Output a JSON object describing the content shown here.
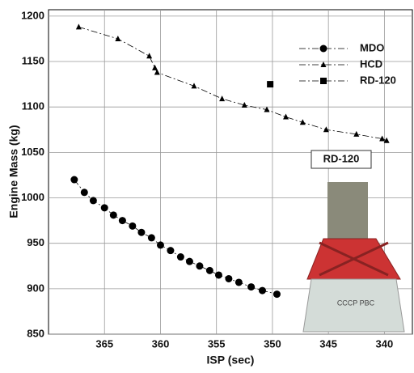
{
  "chart_data": {
    "type": "scatter",
    "x_label": "ISP (sec)",
    "y_label": "Engine Mass (kg)",
    "xlim": [
      370,
      337.5
    ],
    "ylim": [
      850,
      1207
    ],
    "xticks": [
      365,
      360,
      355,
      350,
      345,
      340
    ],
    "yticks": [
      850,
      900,
      950,
      1000,
      1050,
      1100,
      1150,
      1200
    ],
    "grid": true,
    "legend": "upper right",
    "annotation": "RD-120",
    "series": [
      {
        "name": "MDO",
        "color": "#000000",
        "marker": "circle",
        "line": true,
        "x": [
          367.7,
          366.8,
          366,
          365,
          364.2,
          363.4,
          362.5,
          361.7,
          360.8,
          360,
          359.1,
          358.2,
          357.4,
          356.5,
          355.6,
          354.8,
          353.9,
          353,
          351.9,
          350.9,
          349.6
        ],
        "values": [
          1020,
          1006,
          997,
          989,
          981,
          975,
          969,
          962,
          956,
          948,
          942,
          935,
          930,
          925,
          920,
          915,
          911,
          907,
          902,
          898,
          894
        ]
      },
      {
        "name": "HCD",
        "color": "#000000",
        "marker": "triangle",
        "line": true,
        "x": [
          367.3,
          363.8,
          361,
          360.5,
          360.3,
          357,
          354.5,
          352.5,
          350.5,
          348.8,
          347.3,
          345.2,
          342.5,
          340.2,
          339.8
        ],
        "values": [
          1188,
          1175,
          1156,
          1143,
          1138,
          1123,
          1109,
          1102,
          1097,
          1089,
          1083,
          1075,
          1070,
          1065,
          1063
        ]
      },
      {
        "name": "RD-120",
        "color": "#000000",
        "marker": "square",
        "line": false,
        "x": [
          350.2
        ],
        "values": [
          1125
        ]
      }
    ]
  }
}
